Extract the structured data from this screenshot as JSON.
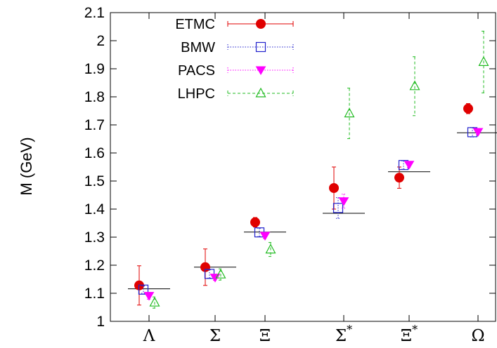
{
  "chart_data": {
    "type": "scatter",
    "title": "",
    "xlabel": "",
    "ylabel": "M (GeV)",
    "ylim": [
      1.0,
      2.1
    ],
    "yticks": [
      "1",
      "1.1",
      "1.2",
      "1.3",
      "1.4",
      "1.5",
      "1.6",
      "1.7",
      "1.8",
      "1.9",
      "2",
      "2.1"
    ],
    "categories": [
      "Λ",
      "Σ",
      "Ξ",
      "Σ",
      "Ξ",
      "Ω"
    ],
    "category_superscripts": [
      "",
      "",
      "",
      "*",
      "*",
      ""
    ],
    "grid": false,
    "legend_position": "top-left",
    "experimental": [
      1.116,
      1.193,
      1.318,
      1.385,
      1.533,
      1.672
    ],
    "series": [
      {
        "name": "ETMC",
        "color": "#e00000",
        "marker": "filled-circle",
        "line": "solid",
        "values": [
          1.128,
          1.193,
          1.353,
          1.475,
          1.512,
          1.758
        ],
        "errors": [
          0.07,
          0.065,
          0.017,
          0.075,
          0.038,
          0.018
        ]
      },
      {
        "name": "BMW",
        "color": "#2222cc",
        "marker": "open-square",
        "line": "dotted",
        "values": [
          1.113,
          1.169,
          1.317,
          1.404,
          1.557,
          1.674
        ],
        "errors": [
          0.013,
          0.015,
          0.015,
          0.037,
          0.015,
          0.017
        ]
      },
      {
        "name": "PACS",
        "color": "#ff00ff",
        "marker": "filled-triangle-down",
        "line": "dotted",
        "values": [
          1.091,
          1.156,
          1.305,
          1.428,
          1.558,
          1.675
        ],
        "errors": [
          0.012,
          0.01,
          0.01,
          0.025,
          0.01,
          0.01
        ]
      },
      {
        "name": "LHPC",
        "color": "#22bb22",
        "marker": "open-triangle-up",
        "line": "dashed",
        "values": [
          1.067,
          1.167,
          1.256,
          1.741,
          1.838,
          1.924
        ],
        "errors": [
          0.02,
          0.02,
          0.025,
          0.09,
          0.105,
          0.11
        ]
      }
    ]
  }
}
